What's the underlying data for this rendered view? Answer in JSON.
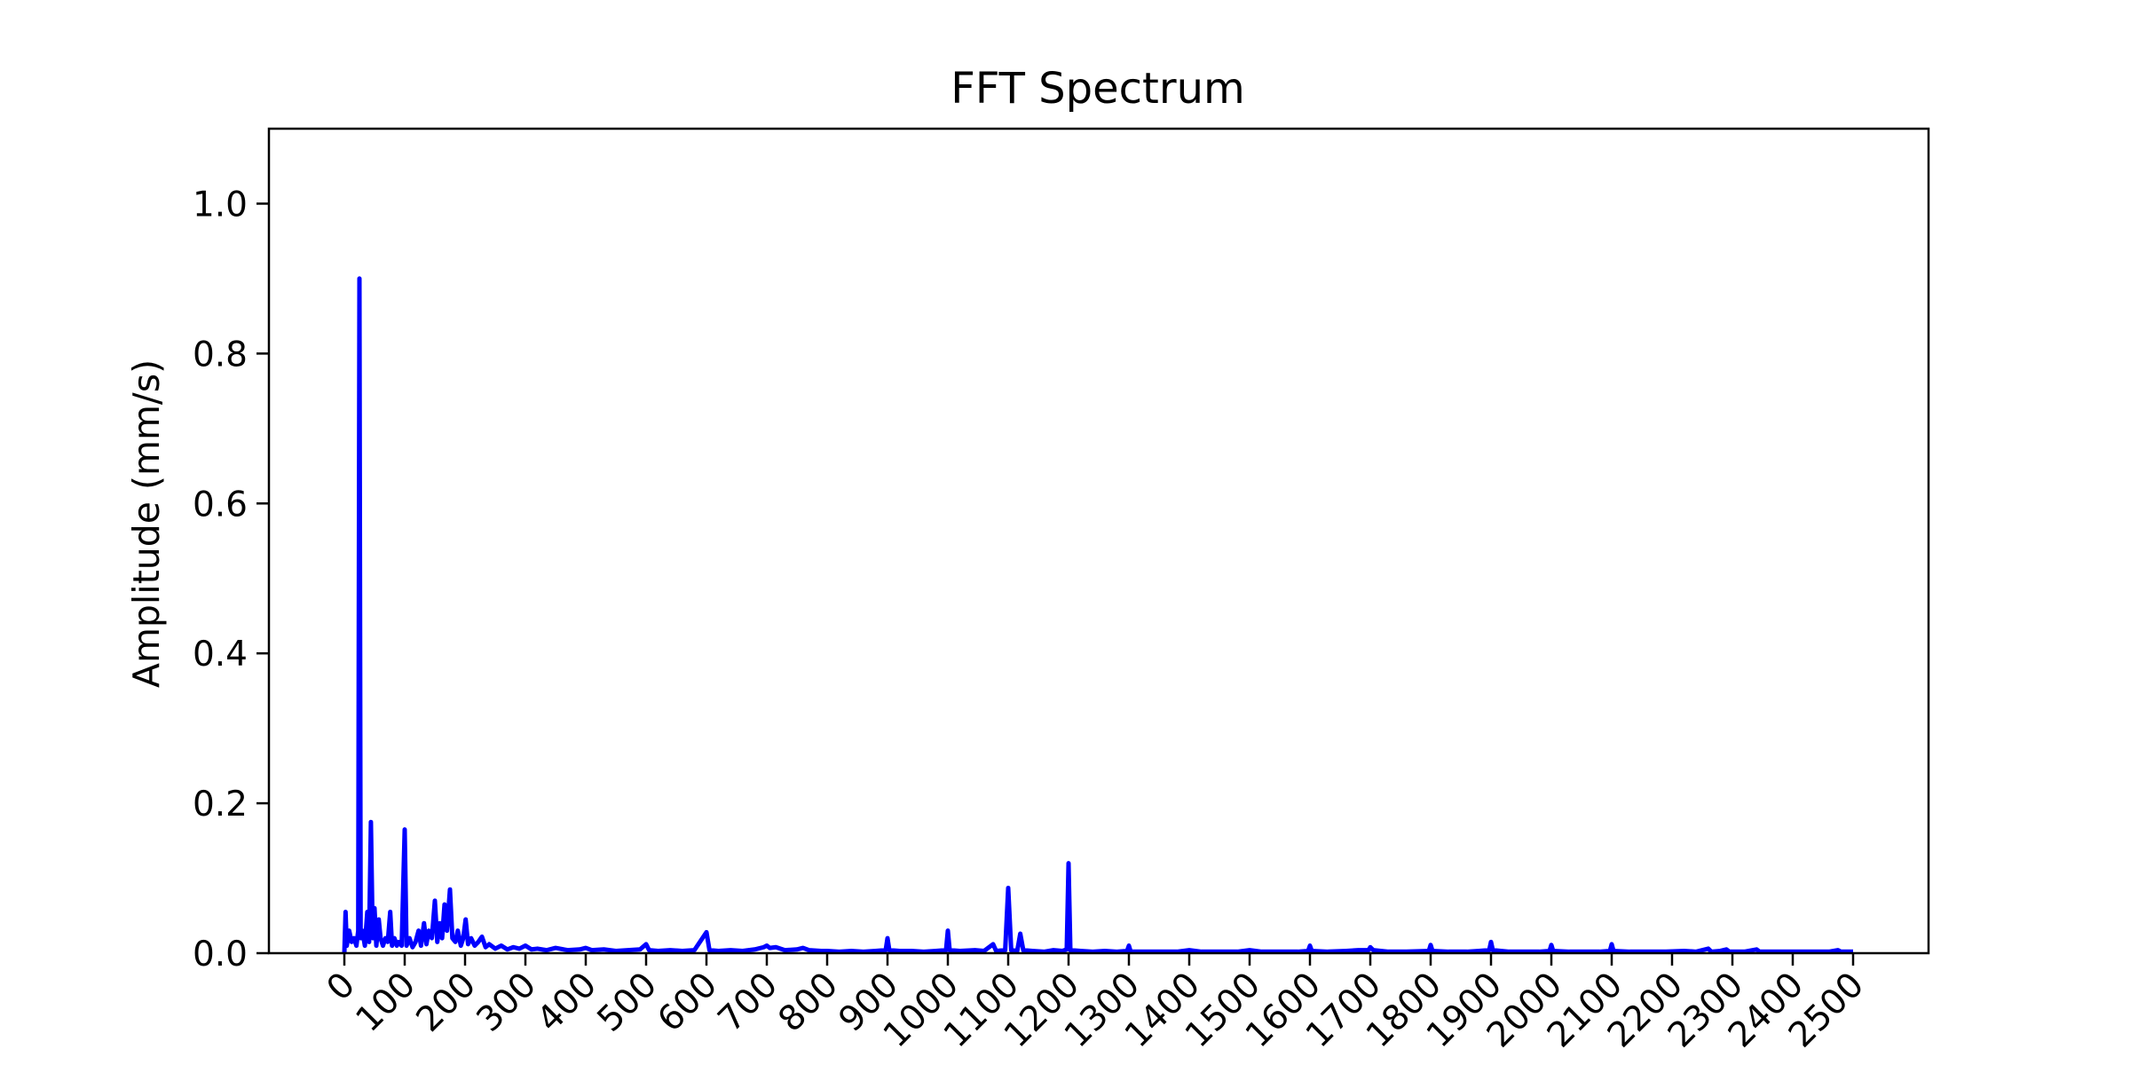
{
  "chart_data": {
    "type": "line",
    "title": "FFT Spectrum",
    "xlabel": "",
    "ylabel": "Amplitude (mm/s)",
    "xlim": [
      -125,
      2625
    ],
    "ylim": [
      0,
      1.1
    ],
    "grid": false,
    "legend": "none",
    "line_color": "#0000ff",
    "axis_color": "#000000",
    "x_ticks": [
      0,
      100,
      200,
      300,
      400,
      500,
      600,
      700,
      800,
      900,
      1000,
      1100,
      1200,
      1300,
      1400,
      1500,
      1600,
      1700,
      1800,
      1900,
      2000,
      2100,
      2200,
      2300,
      2400,
      2500
    ],
    "y_ticks": [
      0.0,
      0.2,
      0.4,
      0.6,
      0.8,
      1.0
    ],
    "y_tick_labels": [
      "0.0",
      "0.2",
      "0.4",
      "0.6",
      "0.8",
      "1.0"
    ],
    "series": [
      {
        "color": "#0000ff",
        "points": [
          [
            0,
            0.0
          ],
          [
            2,
            0.055
          ],
          [
            4,
            0.01
          ],
          [
            8,
            0.03
          ],
          [
            12,
            0.015
          ],
          [
            16,
            0.02
          ],
          [
            20,
            0.01
          ],
          [
            23,
            0.03
          ],
          [
            25,
            0.9
          ],
          [
            27,
            0.02
          ],
          [
            30,
            0.03
          ],
          [
            34,
            0.01
          ],
          [
            38,
            0.055
          ],
          [
            41,
            0.015
          ],
          [
            44,
            0.175
          ],
          [
            47,
            0.02
          ],
          [
            50,
            0.06
          ],
          [
            53,
            0.01
          ],
          [
            57,
            0.045
          ],
          [
            60,
            0.02
          ],
          [
            64,
            0.01
          ],
          [
            68,
            0.02
          ],
          [
            72,
            0.015
          ],
          [
            76,
            0.055
          ],
          [
            79,
            0.01
          ],
          [
            83,
            0.02
          ],
          [
            87,
            0.01
          ],
          [
            90,
            0.015
          ],
          [
            95,
            0.01
          ],
          [
            100,
            0.165
          ],
          [
            103,
            0.01
          ],
          [
            108,
            0.02
          ],
          [
            113,
            0.008
          ],
          [
            118,
            0.015
          ],
          [
            123,
            0.03
          ],
          [
            127,
            0.01
          ],
          [
            132,
            0.04
          ],
          [
            136,
            0.012
          ],
          [
            140,
            0.03
          ],
          [
            145,
            0.02
          ],
          [
            150,
            0.07
          ],
          [
            154,
            0.015
          ],
          [
            158,
            0.04
          ],
          [
            162,
            0.02
          ],
          [
            166,
            0.065
          ],
          [
            170,
            0.03
          ],
          [
            175,
            0.085
          ],
          [
            179,
            0.02
          ],
          [
            184,
            0.015
          ],
          [
            188,
            0.03
          ],
          [
            193,
            0.01
          ],
          [
            197,
            0.02
          ],
          [
            201,
            0.045
          ],
          [
            205,
            0.012
          ],
          [
            210,
            0.02
          ],
          [
            216,
            0.01
          ],
          [
            222,
            0.015
          ],
          [
            228,
            0.022
          ],
          [
            234,
            0.008
          ],
          [
            240,
            0.012
          ],
          [
            250,
            0.006
          ],
          [
            260,
            0.01
          ],
          [
            270,
            0.005
          ],
          [
            280,
            0.008
          ],
          [
            290,
            0.006
          ],
          [
            300,
            0.01
          ],
          [
            310,
            0.005
          ],
          [
            320,
            0.006
          ],
          [
            335,
            0.004
          ],
          [
            350,
            0.007
          ],
          [
            370,
            0.004
          ],
          [
            390,
            0.005
          ],
          [
            400,
            0.007
          ],
          [
            410,
            0.004
          ],
          [
            430,
            0.005
          ],
          [
            450,
            0.003
          ],
          [
            470,
            0.004
          ],
          [
            490,
            0.005
          ],
          [
            500,
            0.012
          ],
          [
            505,
            0.004
          ],
          [
            520,
            0.003
          ],
          [
            540,
            0.004
          ],
          [
            560,
            0.003
          ],
          [
            580,
            0.004
          ],
          [
            600,
            0.028
          ],
          [
            605,
            0.004
          ],
          [
            620,
            0.003
          ],
          [
            640,
            0.004
          ],
          [
            660,
            0.003
          ],
          [
            680,
            0.005
          ],
          [
            695,
            0.008
          ],
          [
            700,
            0.01
          ],
          [
            705,
            0.007
          ],
          [
            715,
            0.008
          ],
          [
            730,
            0.004
          ],
          [
            750,
            0.005
          ],
          [
            760,
            0.007
          ],
          [
            770,
            0.004
          ],
          [
            790,
            0.003
          ],
          [
            800,
            0.003
          ],
          [
            820,
            0.002
          ],
          [
            840,
            0.003
          ],
          [
            860,
            0.002
          ],
          [
            880,
            0.003
          ],
          [
            897,
            0.004
          ],
          [
            900,
            0.02
          ],
          [
            903,
            0.004
          ],
          [
            920,
            0.003
          ],
          [
            940,
            0.003
          ],
          [
            960,
            0.002
          ],
          [
            980,
            0.003
          ],
          [
            997,
            0.004
          ],
          [
            1000,
            0.03
          ],
          [
            1003,
            0.004
          ],
          [
            1020,
            0.003
          ],
          [
            1045,
            0.004
          ],
          [
            1060,
            0.003
          ],
          [
            1075,
            0.012
          ],
          [
            1080,
            0.003
          ],
          [
            1095,
            0.004
          ],
          [
            1100,
            0.087
          ],
          [
            1105,
            0.004
          ],
          [
            1115,
            0.003
          ],
          [
            1120,
            0.026
          ],
          [
            1125,
            0.004
          ],
          [
            1140,
            0.003
          ],
          [
            1160,
            0.002
          ],
          [
            1175,
            0.004
          ],
          [
            1190,
            0.003
          ],
          [
            1197,
            0.005
          ],
          [
            1200,
            0.12
          ],
          [
            1203,
            0.004
          ],
          [
            1220,
            0.003
          ],
          [
            1240,
            0.002
          ],
          [
            1260,
            0.003
          ],
          [
            1280,
            0.002
          ],
          [
            1297,
            0.003
          ],
          [
            1300,
            0.01
          ],
          [
            1303,
            0.002
          ],
          [
            1330,
            0.002
          ],
          [
            1360,
            0.002
          ],
          [
            1380,
            0.002
          ],
          [
            1400,
            0.004
          ],
          [
            1420,
            0.002
          ],
          [
            1450,
            0.002
          ],
          [
            1480,
            0.002
          ],
          [
            1500,
            0.004
          ],
          [
            1520,
            0.002
          ],
          [
            1550,
            0.002
          ],
          [
            1580,
            0.002
          ],
          [
            1597,
            0.003
          ],
          [
            1600,
            0.01
          ],
          [
            1603,
            0.003
          ],
          [
            1630,
            0.002
          ],
          [
            1660,
            0.003
          ],
          [
            1680,
            0.004
          ],
          [
            1697,
            0.004
          ],
          [
            1700,
            0.008
          ],
          [
            1705,
            0.004
          ],
          [
            1730,
            0.002
          ],
          [
            1760,
            0.002
          ],
          [
            1797,
            0.003
          ],
          [
            1800,
            0.011
          ],
          [
            1803,
            0.003
          ],
          [
            1830,
            0.002
          ],
          [
            1860,
            0.002
          ],
          [
            1880,
            0.003
          ],
          [
            1897,
            0.004
          ],
          [
            1900,
            0.015
          ],
          [
            1903,
            0.004
          ],
          [
            1930,
            0.002
          ],
          [
            1960,
            0.002
          ],
          [
            1980,
            0.002
          ],
          [
            1997,
            0.003
          ],
          [
            2000,
            0.011
          ],
          [
            2003,
            0.003
          ],
          [
            2030,
            0.002
          ],
          [
            2060,
            0.002
          ],
          [
            2080,
            0.002
          ],
          [
            2097,
            0.003
          ],
          [
            2100,
            0.012
          ],
          [
            2103,
            0.003
          ],
          [
            2130,
            0.002
          ],
          [
            2160,
            0.002
          ],
          [
            2190,
            0.002
          ],
          [
            2220,
            0.003
          ],
          [
            2240,
            0.002
          ],
          [
            2260,
            0.006
          ],
          [
            2265,
            0.002
          ],
          [
            2280,
            0.003
          ],
          [
            2290,
            0.005
          ],
          [
            2295,
            0.002
          ],
          [
            2320,
            0.002
          ],
          [
            2340,
            0.005
          ],
          [
            2345,
            0.002
          ],
          [
            2370,
            0.002
          ],
          [
            2400,
            0.002
          ],
          [
            2430,
            0.002
          ],
          [
            2460,
            0.002
          ],
          [
            2475,
            0.004
          ],
          [
            2480,
            0.002
          ],
          [
            2500,
            0.002
          ]
        ]
      }
    ]
  }
}
